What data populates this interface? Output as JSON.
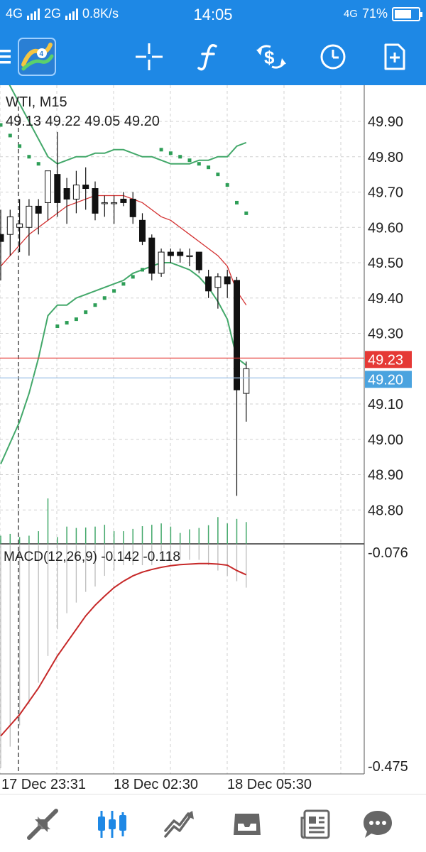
{
  "status_bar": {
    "network_1": "4G",
    "network_2": "2G",
    "speed": "0.8K/s",
    "time": "14:05",
    "network_right": "4G",
    "battery": "71%",
    "battery_level": 0.71
  },
  "toolbar": {
    "items": [
      "menu-icon",
      "app-logo",
      "crosshair-icon",
      "indicators-icon",
      "trade-icon",
      "timeframe-icon",
      "add-chart-icon"
    ]
  },
  "chart": {
    "symbol_timeframe": "WTI, M15",
    "ohlc": "49.13 49.22 49.05 49.20",
    "price_axis": [
      "49.90",
      "49.80",
      "49.70",
      "49.60",
      "49.50",
      "49.40",
      "49.30",
      "49.10",
      "49.00",
      "48.90",
      "48.80"
    ],
    "ask_label": "49.23",
    "bid_label": "49.20",
    "macd_label": "MACD(12,26,9) -0.142 -0.118",
    "macd_axis_top": "-0.076",
    "macd_axis_bottom": "-0.475",
    "time_labels": [
      "17 Dec 23:31",
      "18 Dec 02:30",
      "18 Dec 05:30"
    ],
    "colors": {
      "bid_line": "#9fc3e6",
      "ask_line": "#e53935",
      "bid_badge": "#4aa3df",
      "ask_badge": "#e53935",
      "bands": "#43a86a",
      "ma": "#d32f2f",
      "sar": "#2e9e57",
      "signal": "#c62828"
    }
  },
  "chart_data": {
    "type": "candlestick",
    "title": "WTI, M15",
    "ylim": [
      48.73,
      50.02
    ],
    "candles": [
      {
        "o": 49.58,
        "h": 49.65,
        "l": 49.45,
        "c": 49.56
      },
      {
        "o": 49.58,
        "h": 49.65,
        "l": 49.52,
        "c": 49.63
      },
      {
        "o": 49.6,
        "h": 49.68,
        "l": 49.53,
        "c": 49.61
      },
      {
        "o": 49.6,
        "h": 49.68,
        "l": 49.52,
        "c": 49.66
      },
      {
        "o": 49.66,
        "h": 49.68,
        "l": 49.58,
        "c": 49.64
      },
      {
        "o": 49.67,
        "h": 49.76,
        "l": 49.62,
        "c": 49.76
      },
      {
        "o": 49.75,
        "h": 49.87,
        "l": 49.63,
        "c": 49.67
      },
      {
        "o": 49.71,
        "h": 49.74,
        "l": 49.61,
        "c": 49.68
      },
      {
        "o": 49.68,
        "h": 49.76,
        "l": 49.64,
        "c": 49.72
      },
      {
        "o": 49.72,
        "h": 49.77,
        "l": 49.65,
        "c": 49.71
      },
      {
        "o": 49.71,
        "h": 49.73,
        "l": 49.62,
        "c": 49.64
      },
      {
        "o": 49.67,
        "h": 49.69,
        "l": 49.63,
        "c": 49.67
      },
      {
        "o": 49.67,
        "h": 49.69,
        "l": 49.61,
        "c": 49.67
      },
      {
        "o": 49.68,
        "h": 49.7,
        "l": 49.66,
        "c": 49.67
      },
      {
        "o": 49.68,
        "h": 49.7,
        "l": 49.61,
        "c": 49.63
      },
      {
        "o": 49.62,
        "h": 49.64,
        "l": 49.55,
        "c": 49.56
      },
      {
        "o": 49.57,
        "h": 49.58,
        "l": 49.45,
        "c": 49.47
      },
      {
        "o": 49.47,
        "h": 49.54,
        "l": 49.46,
        "c": 49.53
      },
      {
        "o": 49.53,
        "h": 49.54,
        "l": 49.5,
        "c": 49.52
      },
      {
        "o": 49.53,
        "h": 49.54,
        "l": 49.5,
        "c": 49.52
      },
      {
        "o": 49.52,
        "h": 49.54,
        "l": 49.49,
        "c": 49.52
      },
      {
        "o": 49.53,
        "h": 49.53,
        "l": 49.47,
        "c": 49.48
      },
      {
        "o": 49.46,
        "h": 49.48,
        "l": 49.4,
        "c": 49.42
      },
      {
        "o": 49.43,
        "h": 49.47,
        "l": 49.37,
        "c": 49.46
      },
      {
        "o": 49.46,
        "h": 49.48,
        "l": 49.4,
        "c": 49.44
      },
      {
        "o": 49.45,
        "h": 49.46,
        "l": 48.84,
        "c": 49.14
      },
      {
        "o": 49.13,
        "h": 49.22,
        "l": 49.05,
        "c": 49.2
      }
    ],
    "upper_band": [
      50.05,
      50.0,
      49.95,
      49.9,
      49.85,
      49.8,
      49.78,
      49.79,
      49.8,
      49.8,
      49.81,
      49.81,
      49.82,
      49.82,
      49.81,
      49.8,
      49.8,
      49.79,
      49.78,
      49.78,
      49.78,
      49.79,
      49.79,
      49.8,
      49.8,
      49.83,
      49.84
    ],
    "middle_ma": [
      49.49,
      49.52,
      49.55,
      49.58,
      49.6,
      49.62,
      49.64,
      49.66,
      49.67,
      49.68,
      49.69,
      49.69,
      49.69,
      49.69,
      49.68,
      49.67,
      49.65,
      49.63,
      49.62,
      49.6,
      49.58,
      49.56,
      49.54,
      49.52,
      49.49,
      49.42,
      49.38
    ],
    "lower_band": [
      48.93,
      48.99,
      49.05,
      49.13,
      49.23,
      49.35,
      49.38,
      49.38,
      49.4,
      49.41,
      49.42,
      49.43,
      49.44,
      49.45,
      49.47,
      49.48,
      49.49,
      49.5,
      49.5,
      49.49,
      49.48,
      49.46,
      49.43,
      49.39,
      49.34,
      49.23,
      49.21
    ],
    "sar": [
      49.89,
      49.86,
      49.83,
      49.8,
      49.78,
      49.75,
      49.32,
      49.33,
      49.34,
      49.36,
      49.38,
      49.4,
      49.42,
      49.44,
      49.46,
      49.48,
      49.5,
      49.82,
      49.81,
      49.8,
      49.79,
      49.78,
      49.77,
      49.75,
      49.72,
      49.67,
      49.64
    ],
    "ask": 49.23,
    "bid": 49.2,
    "volume_rel": [
      0.18,
      0.22,
      0.15,
      0.18,
      0.28,
      1.0,
      0.15,
      0.38,
      0.35,
      0.36,
      0.38,
      0.42,
      0.28,
      0.28,
      0.33,
      0.39,
      0.42,
      0.45,
      0.38,
      0.24,
      0.32,
      0.35,
      0.41,
      0.59,
      0.45,
      0.55,
      0.48
    ],
    "macd": {
      "ylim": [
        -0.475,
        -0.076
      ],
      "hist": [
        -0.48,
        -0.44,
        -0.4,
        -0.36,
        -0.32,
        -0.27,
        -0.22,
        -0.19,
        -0.17,
        -0.15,
        -0.14,
        -0.12,
        -0.11,
        -0.1,
        -0.1,
        -0.1,
        -0.1,
        -0.09,
        -0.09,
        -0.09,
        -0.09,
        -0.09,
        -0.1,
        -0.11,
        -0.12,
        -0.13,
        -0.142
      ],
      "signal": [
        -0.42,
        -0.4,
        -0.38,
        -0.355,
        -0.33,
        -0.3,
        -0.27,
        -0.245,
        -0.22,
        -0.195,
        -0.175,
        -0.158,
        -0.142,
        -0.13,
        -0.12,
        -0.113,
        -0.108,
        -0.104,
        -0.101,
        -0.099,
        -0.098,
        -0.097,
        -0.097,
        -0.098,
        -0.1,
        -0.11,
        -0.118
      ]
    }
  },
  "bottom_nav": {
    "items": [
      "quotes-icon",
      "chart-icon",
      "trade-icon",
      "history-icon",
      "news-icon",
      "chat-icon"
    ]
  }
}
